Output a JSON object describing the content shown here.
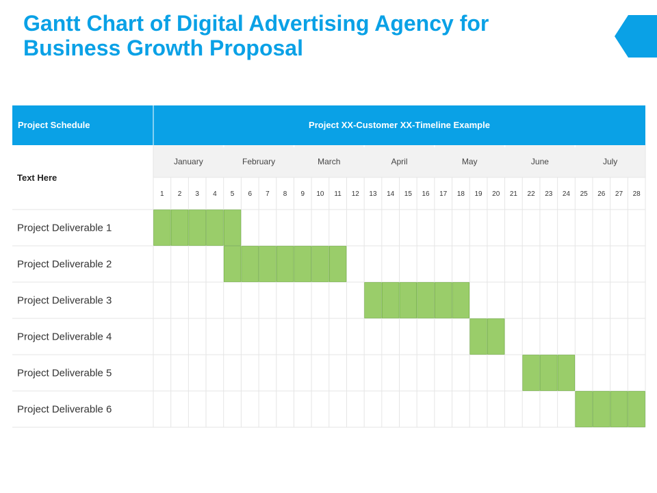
{
  "title_lines": [
    "Gantt Chart of Digital Advertising Agency for",
    "Business Growth Proposal"
  ],
  "colors": {
    "accent": "#0aa1e6",
    "bar": "#9acd6a",
    "bar_border": "#6fae3f",
    "grid": "#e5e5e5",
    "month_band": "#f2f2f2",
    "header_text": "#ffffff",
    "body_text": "#333333"
  },
  "chart_data": {
    "type": "gantt",
    "header_left": "Project Schedule",
    "header_right": "Project XX-Customer XX-Timeline Example",
    "row_header": "Text Here",
    "months": [
      "January",
      "February",
      "March",
      "April",
      "May",
      "June",
      "July"
    ],
    "weeks": [
      1,
      2,
      3,
      4,
      5,
      6,
      7,
      8,
      9,
      10,
      11,
      12,
      13,
      14,
      15,
      16,
      17,
      18,
      19,
      20,
      21,
      22,
      23,
      24,
      25,
      26,
      27,
      28
    ],
    "tasks": [
      {
        "name": "Project Deliverable 1",
        "start": 1,
        "end": 5
      },
      {
        "name": "Project Deliverable 2",
        "start": 5,
        "end": 11
      },
      {
        "name": "Project Deliverable 3",
        "start": 13,
        "end": 18
      },
      {
        "name": "Project Deliverable 4",
        "start": 19,
        "end": 20
      },
      {
        "name": "Project Deliverable 5",
        "start": 22,
        "end": 24
      },
      {
        "name": "Project Deliverable 6",
        "start": 25,
        "end": 28
      }
    ]
  }
}
